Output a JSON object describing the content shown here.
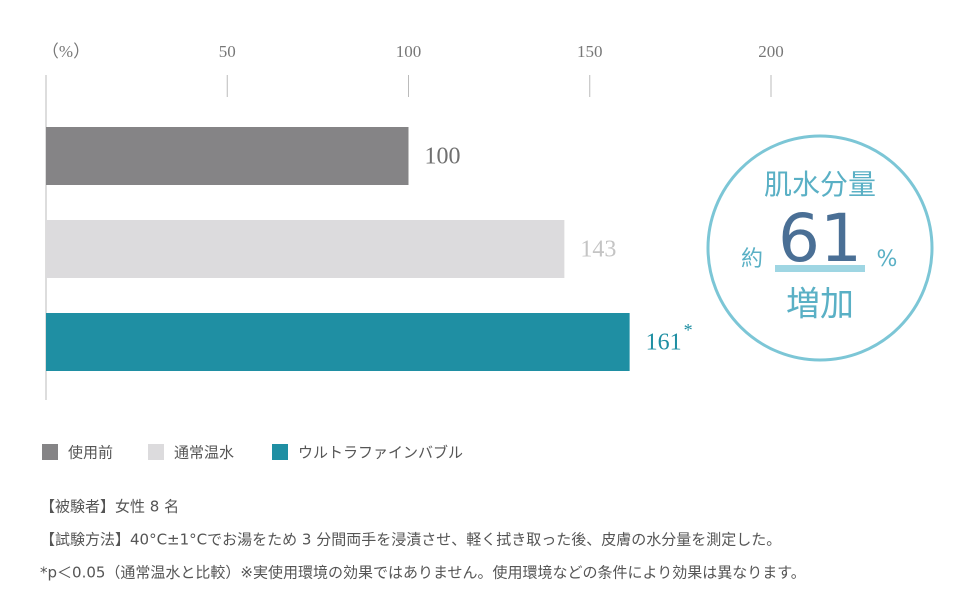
{
  "chart_data": {
    "type": "bar",
    "x_unit_label": "（%）",
    "categories": [
      "使用前",
      "通常温水",
      "ウルトラファインバブル"
    ],
    "values": [
      100,
      143,
      161
    ],
    "colors": [
      "#858486",
      "#dcdbdd",
      "#1f8fa3"
    ],
    "label_colors": [
      "#707070",
      "#c4c4c4",
      "#1f8fa3"
    ],
    "xlim": [
      0,
      200
    ],
    "xticks": [
      50,
      100,
      150,
      200
    ],
    "annotations": [
      {
        "category": "ウルトラファインバブル",
        "text": "*"
      }
    ],
    "badge": {
      "title": "肌水分量",
      "prefix": "約",
      "value": "61",
      "unit": "%",
      "suffix": "増加"
    },
    "notes": [
      "【被験者】女性 8 名",
      "【試験方法】40°C±1°Cでお湯をため 3 分間両手を浸漬させ、軽く拭き取った後、皮膚の水分量を測定した。",
      "*p＜0.05（通常温水と比較）※実使用環境の効果ではありません。使用環境などの条件により効果は異なります。"
    ]
  }
}
